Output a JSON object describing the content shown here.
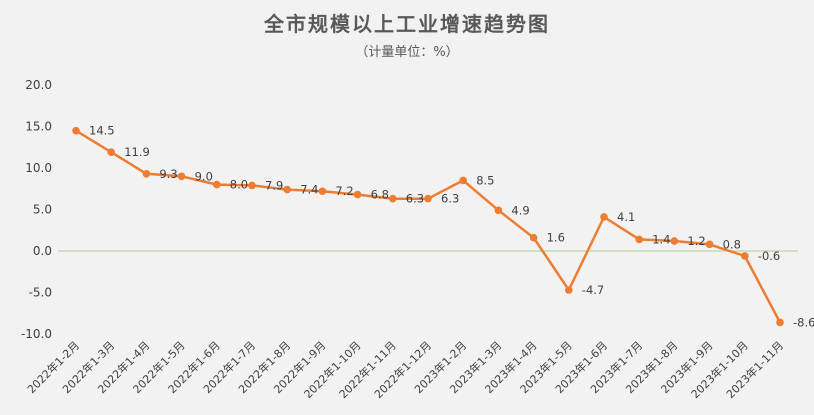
{
  "chart_data": {
    "type": "line",
    "title": "全市规模以上工业增速趋势图",
    "subtitle": "（计量单位：%）",
    "categories": [
      "2022年1-2月",
      "2022年1-3月",
      "2022年1-4月",
      "2022年1-5月",
      "2022年1-6月",
      "2022年1-7月",
      "2022年1-8月",
      "2022年1-9月",
      "2022年1-10月",
      "2022年1-11月",
      "2022年1-12月",
      "2023年1-2月",
      "2023年1-3月",
      "2023年1-4月",
      "2023年1-5月",
      "2023年1-6月",
      "2023年1-7月",
      "2023年1-8月",
      "2023年1-9月",
      "2023年1-10月",
      "2023年1-11月"
    ],
    "series": [
      {
        "values": [
          14.5,
          11.9,
          9.3,
          9.0,
          8.0,
          7.9,
          7.4,
          7.2,
          6.8,
          6.3,
          6.3,
          8.5,
          4.9,
          1.6,
          -4.7,
          4.1,
          1.4,
          1.2,
          0.8,
          -0.6,
          -8.6
        ]
      }
    ],
    "data_labels": [
      "14.5",
      "11.9",
      "9.3",
      "9.0",
      "8.0",
      "7.9",
      "7.4",
      "7.2",
      "6.8",
      "6.3",
      "6.3",
      "8.5",
      "4.9",
      "1.6",
      "-4.7",
      "4.1",
      "1.4",
      "1.2",
      "0.8",
      "-0.6",
      "-8.6"
    ],
    "y_ticks": [
      "20.0",
      "15.0",
      "10.0",
      "5.0",
      "0.0",
      "-5.0",
      "-10.0"
    ],
    "ylim": [
      -10,
      20
    ],
    "grid": false,
    "legend": "none",
    "colors": {
      "line": "#ed7d31",
      "zero_line": "#a9d18e",
      "background": "#f2f2f2",
      "text": "#404040",
      "title": "#595959"
    }
  }
}
